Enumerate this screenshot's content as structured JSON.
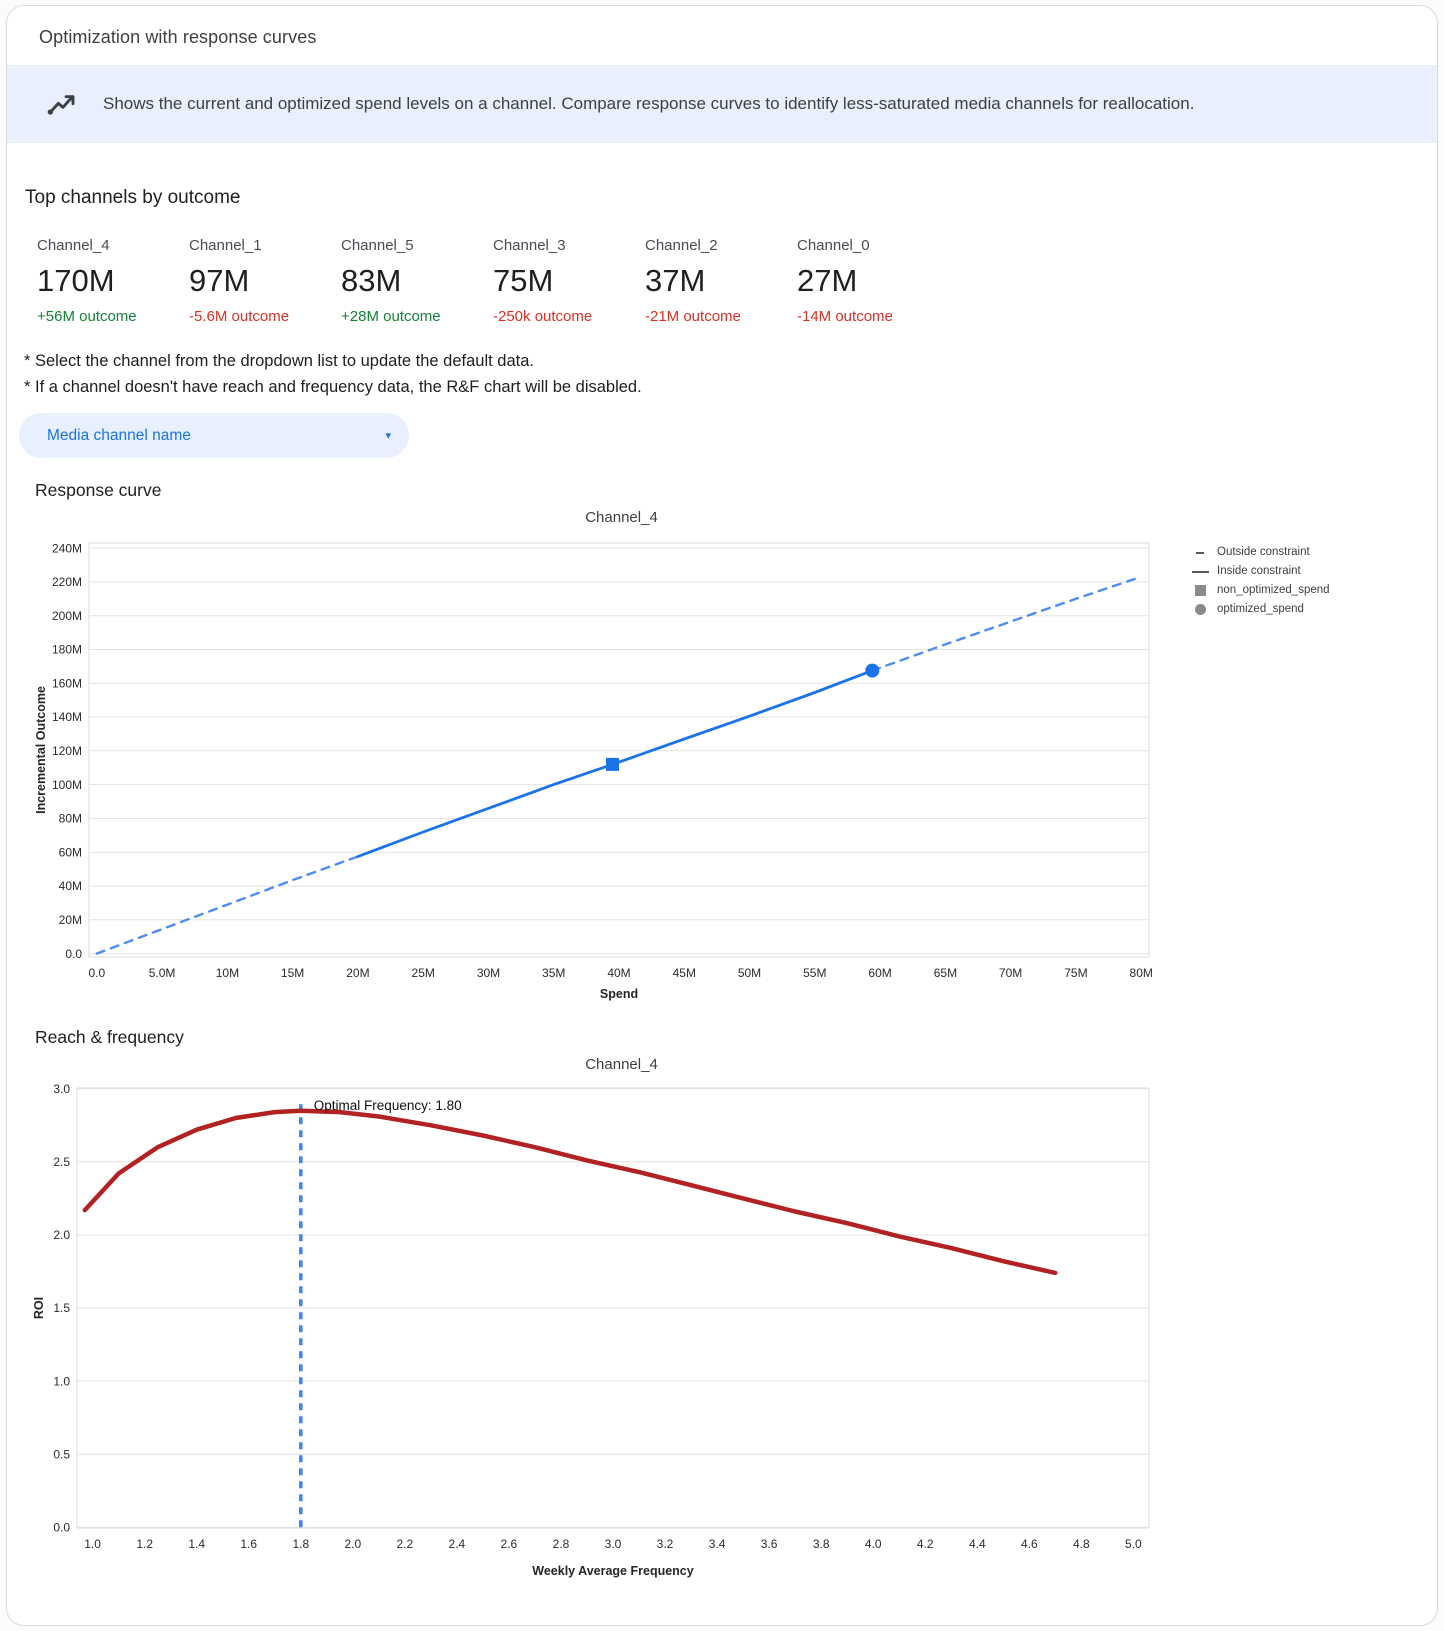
{
  "header": {
    "title": "Optimization with response curves",
    "banner": "Shows the current and optimized spend levels on a channel. Compare response curves to identify less-saturated media channels for reallocation."
  },
  "top_channels": {
    "title": "Top channels by outcome",
    "channels": [
      {
        "name": "Channel_4",
        "value": "170M",
        "delta": "+56M outcome",
        "direction": "up"
      },
      {
        "name": "Channel_1",
        "value": "97M",
        "delta": "-5.6M outcome",
        "direction": "down"
      },
      {
        "name": "Channel_5",
        "value": "83M",
        "delta": "+28M outcome",
        "direction": "up"
      },
      {
        "name": "Channel_3",
        "value": "75M",
        "delta": "-250k outcome",
        "direction": "down"
      },
      {
        "name": "Channel_2",
        "value": "37M",
        "delta": "-21M outcome",
        "direction": "down"
      },
      {
        "name": "Channel_0",
        "value": "27M",
        "delta": "-14M outcome",
        "direction": "down"
      }
    ]
  },
  "notes": [
    "* Select the channel from the dropdown list to update the default data.",
    "* If a channel doesn't have reach and frequency data, the R&F chart will be disabled."
  ],
  "dropdown": {
    "label": "Media channel name"
  },
  "sections": {
    "response_curve": "Response curve",
    "reach_frequency": "Reach & frequency"
  },
  "chart_data": [
    {
      "id": "response_curve",
      "type": "line",
      "title": "Channel_4",
      "xlabel": "Spend",
      "ylabel": "Incremental Outcome",
      "units": "x and y values in millions",
      "xlim": [
        0,
        80
      ],
      "ylim": [
        0,
        240
      ],
      "grid": "horizontal",
      "x_ticks": {
        "values": [
          0,
          5,
          10,
          15,
          20,
          25,
          30,
          35,
          40,
          45,
          50,
          55,
          60,
          65,
          70,
          75,
          80
        ],
        "labels": [
          "0.0",
          "5.0M",
          "10M",
          "15M",
          "20M",
          "25M",
          "30M",
          "35M",
          "40M",
          "45M",
          "50M",
          "55M",
          "60M",
          "65M",
          "70M",
          "75M",
          "80M"
        ]
      },
      "y_ticks": {
        "values": [
          0,
          20,
          40,
          60,
          80,
          100,
          120,
          140,
          160,
          180,
          200,
          220,
          240
        ],
        "labels": [
          "0.0",
          "20M",
          "40M",
          "60M",
          "80M",
          "100M",
          "120M",
          "140M",
          "160M",
          "180M",
          "200M",
          "220M",
          "240M"
        ]
      },
      "series": [
        {
          "name": "outside-constraint-lower",
          "style": "dashed",
          "color": "#4d8df0",
          "width": 2.4,
          "x": [
            0,
            5,
            10,
            15,
            20
          ],
          "y": [
            0,
            14.5,
            29,
            43.5,
            57.5
          ]
        },
        {
          "name": "inside-constraint",
          "style": "solid",
          "color": "#1a73e8",
          "width": 2.8,
          "x": [
            20,
            25,
            30,
            35,
            39.5,
            45,
            50,
            55,
            59.4
          ],
          "y": [
            57.5,
            72,
            86,
            100,
            112,
            127,
            140.5,
            154.5,
            167.5
          ]
        },
        {
          "name": "outside-constraint-upper",
          "style": "dashed",
          "color": "#4d8df0",
          "width": 2.4,
          "x": [
            59.4,
            65,
            70,
            75,
            80
          ],
          "y": [
            167.5,
            183,
            196.5,
            210,
            223
          ]
        }
      ],
      "markers": [
        {
          "name": "non_optimized_spend",
          "shape": "square",
          "color": "#1a73e8",
          "x": 39.5,
          "y": 112
        },
        {
          "name": "optimized_spend",
          "shape": "circle",
          "color": "#1a73e8",
          "x": 59.4,
          "y": 167.5
        }
      ],
      "legend": [
        {
          "label": "Outside constraint",
          "marker": "dash"
        },
        {
          "label": "Inside constraint",
          "marker": "line"
        },
        {
          "label": "non_optimized_spend",
          "marker": "square"
        },
        {
          "label": "optimized_spend",
          "marker": "circle"
        }
      ],
      "legend_position": "right"
    },
    {
      "id": "reach_frequency",
      "type": "line",
      "title": "Channel_4",
      "xlabel": "Weekly Average Frequency",
      "ylabel": "ROI",
      "xlim": [
        1.0,
        5.0
      ],
      "ylim": [
        0,
        3.0
      ],
      "grid": "horizontal",
      "x_ticks": {
        "values": [
          1,
          1.2,
          1.4,
          1.6,
          1.8,
          2,
          2.2,
          2.4,
          2.6,
          2.8,
          3,
          3.2,
          3.4,
          3.6,
          3.8,
          4,
          4.2,
          4.4,
          4.6,
          4.8,
          5
        ],
        "labels": [
          "1.0",
          "1.2",
          "1.4",
          "1.6",
          "1.8",
          "2.0",
          "2.2",
          "2.4",
          "2.6",
          "2.8",
          "3.0",
          "3.2",
          "3.4",
          "3.6",
          "3.8",
          "4.0",
          "4.2",
          "4.4",
          "4.6",
          "4.8",
          "5.0"
        ]
      },
      "y_ticks": {
        "values": [
          0,
          0.5,
          1,
          1.5,
          2,
          2.5,
          3
        ],
        "labels": [
          "0.0",
          "0.5",
          "1.0",
          "1.5",
          "2.0",
          "2.5",
          "3.0"
        ]
      },
      "series": [
        {
          "name": "roi-by-frequency",
          "style": "solid",
          "color": "#b22222",
          "width": 4.5,
          "x": [
            0.97,
            1.1,
            1.25,
            1.4,
            1.55,
            1.7,
            1.8,
            1.95,
            2.1,
            2.3,
            2.5,
            2.7,
            2.9,
            3.1,
            3.3,
            3.5,
            3.7,
            3.9,
            4.1,
            4.3,
            4.5,
            4.7
          ],
          "y": [
            2.17,
            2.42,
            2.6,
            2.72,
            2.8,
            2.84,
            2.85,
            2.84,
            2.81,
            2.75,
            2.68,
            2.6,
            2.51,
            2.43,
            2.34,
            2.25,
            2.16,
            2.08,
            1.99,
            1.91,
            1.82,
            1.74
          ]
        }
      ],
      "vline": {
        "x": 1.8,
        "label": "Optimal Frequency: 1.80",
        "color": "#4285f4"
      },
      "optimal_frequency": 1.8
    }
  ]
}
